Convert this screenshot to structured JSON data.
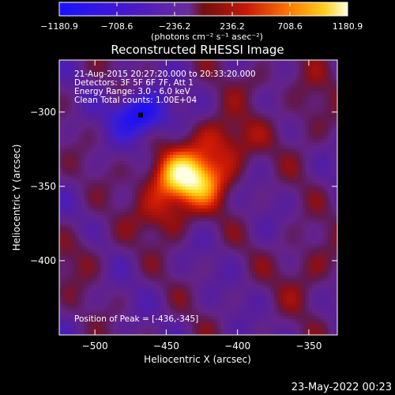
{
  "colorbar": {
    "ticks": [
      "−1180.9",
      "−708.6",
      "−236.2",
      "236.2",
      "708.6",
      "1180.9"
    ],
    "units": "(photons cm⁻² s⁻¹ asec⁻²)"
  },
  "chart_data": {
    "type": "heatmap",
    "title": "Reconstructed RHESSI Image",
    "xlabel": "Heliocentric X (arcsec)",
    "ylabel": "Heliocentric Y (arcsec)",
    "xlim": [
      -525,
      -330
    ],
    "ylim": [
      -450,
      -265
    ],
    "xticks": [
      -500,
      -450,
      -400,
      -350
    ],
    "yticks": [
      -300,
      -350,
      -400
    ],
    "xtick_labels": [
      "−500",
      "−450",
      "−400",
      "−350"
    ],
    "ytick_labels": [
      "−300",
      "−350",
      "−400"
    ],
    "colorscale_range": [
      -1180.9,
      1180.9
    ],
    "sources": [
      {
        "label": "positive_main",
        "x": -436,
        "y": -345,
        "value": 1180.9
      },
      {
        "label": "negative_main",
        "x": -468,
        "y": -302,
        "value": -1180.9
      }
    ],
    "annotations": [
      "21-Aug-2015 20:27:20.000 to 20:33:20.000",
      "Detectors: 3F 5F 6F 7F, Att 1",
      "Energy Range: 3.0 - 6.0 keV",
      "Clean    Total counts: 1.00E+04"
    ],
    "peak_label": "Position of Peak = [-436,-345]"
  },
  "footer": {
    "date": "23-May-2022 00:23"
  }
}
